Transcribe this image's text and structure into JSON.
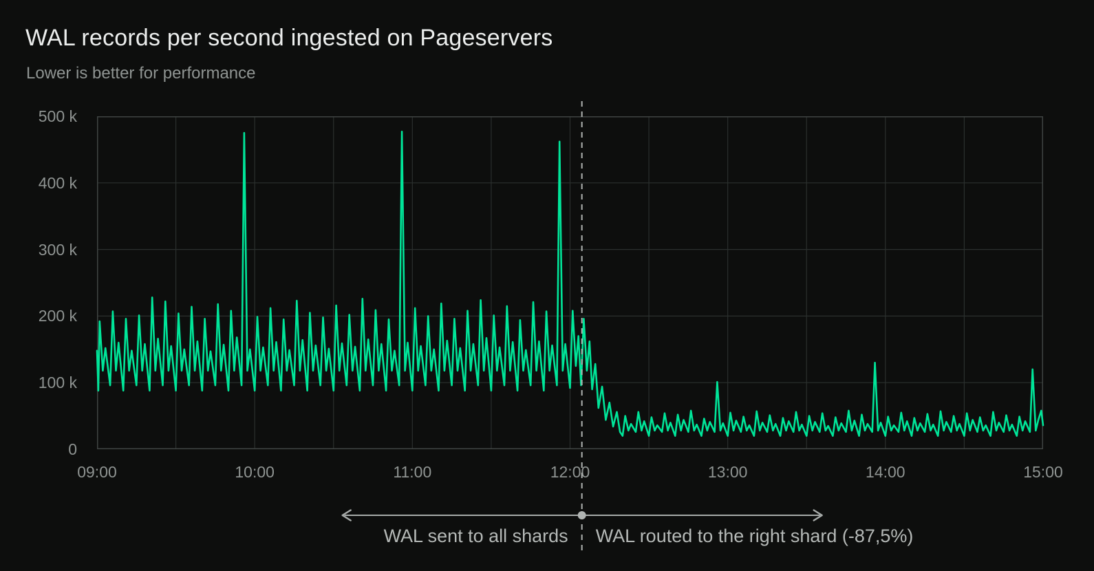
{
  "header": {
    "title": "WAL records per second ingested on Pageservers",
    "subtitle": "Lower is better for performance"
  },
  "annotation": {
    "left_label": "WAL sent to all shards",
    "right_label": "WAL routed to the right shard (-87,5%)"
  },
  "colors": {
    "background": "#0d0e0d",
    "title_text": "#eceeed",
    "subtitle_text": "#8f9492",
    "axis_text": "#8f9492",
    "grid_inner": "#2b302e",
    "plot_border": "#3f4442",
    "series_line": "#00e599",
    "split_line": "#b0b4b2",
    "arrow": "#a8acaa",
    "annotation_text": "#b5b9b7"
  },
  "chart_data": {
    "type": "line",
    "title": "WAL records per second ingested on Pageservers",
    "subtitle": "Lower is better for performance",
    "grid": "on",
    "x_axis": {
      "range_minutes": [
        0,
        360
      ],
      "gridline_every_minutes": 30,
      "ticks": [
        {
          "m": 0,
          "label": "09:00"
        },
        {
          "m": 60,
          "label": "10:00"
        },
        {
          "m": 120,
          "label": "11:00"
        },
        {
          "m": 180,
          "label": "12:00"
        },
        {
          "m": 240,
          "label": "13:00"
        },
        {
          "m": 300,
          "label": "14:00"
        },
        {
          "m": 360,
          "label": "15:00"
        }
      ]
    },
    "y_axis": {
      "max_k": 500,
      "ticks": [
        {
          "v": 500,
          "label": "500 k"
        },
        {
          "v": 400,
          "label": "400 k"
        },
        {
          "v": 300,
          "label": "300 k"
        },
        {
          "v": 200,
          "label": "200 k"
        },
        {
          "v": 100,
          "label": "100 k"
        },
        {
          "v": 0,
          "label": "0"
        }
      ]
    },
    "split_minute": 184.5,
    "hourly_spikes": [
      {
        "time": "09:56",
        "value_k": 475
      },
      {
        "time": "10:56",
        "value_k": 477
      },
      {
        "time": "11:56",
        "value_k": 462
      },
      {
        "time": "12:56",
        "value_k": 101
      },
      {
        "time": "13:56",
        "value_k": 130
      },
      {
        "time": "14:56",
        "value_k": 120
      }
    ],
    "series": {
      "name": "WAL records per second",
      "color": "#00e599",
      "lead_in_points": [
        [
          0,
          148
        ]
      ],
      "pre_regime": {
        "label": "WAL sent to all shards",
        "start_min": 0,
        "cycle_minutes": 5,
        "offsets": [
          1.0,
          2.2,
          3.2
        ],
        "minima_alternate": [
          88,
          96
        ],
        "mid_dip": 118,
        "peaks": [
          192,
          207,
          196,
          201,
          228,
          222,
          204,
          214,
          196,
          218,
          208,
          475,
          199,
          212,
          195,
          223,
          205,
          198,
          216,
          202,
          226,
          209,
          195,
          477,
          212,
          200,
          219,
          196,
          208,
          224,
          201,
          215,
          194,
          221,
          207,
          462
        ],
        "shoulders": [
          152,
          160,
          148,
          158,
          166,
          155,
          150,
          162,
          147,
          157,
          168,
          150,
          153,
          161,
          149,
          164,
          156,
          151,
          159,
          154,
          165,
          158,
          148,
          160,
          155,
          150,
          163,
          152,
          158,
          167,
          153,
          161,
          149,
          162,
          156,
          158
        ]
      },
      "transition_points": [
        [
          180,
          92
        ],
        [
          181,
          208
        ],
        [
          182.2,
          125
        ],
        [
          183.2,
          170
        ],
        [
          184.2,
          96
        ],
        [
          185.2,
          196
        ],
        [
          186.4,
          118
        ],
        [
          187.4,
          162
        ],
        [
          188.4,
          90
        ],
        [
          189.6,
          128
        ],
        [
          190.8,
          62
        ],
        [
          192.2,
          94
        ],
        [
          193.6,
          44
        ],
        [
          195,
          70
        ],
        [
          196.4,
          34
        ],
        [
          197.8,
          56
        ],
        [
          199,
          26
        ]
      ],
      "post_regime": {
        "label": "WAL routed to the right shard (-87,5%)",
        "start_min": 200,
        "cycle_minutes": 5,
        "offsets": [
          1.0,
          2.2,
          3.2
        ],
        "minima_alternate": [
          20,
          26
        ],
        "mid_dip": 28,
        "peaks": [
          50,
          56,
          48,
          54,
          52,
          58,
          46,
          101,
          55,
          49,
          57,
          51,
          47,
          56,
          50,
          54,
          48,
          58,
          52,
          130,
          49,
          55,
          47,
          53,
          57,
          50,
          54,
          48,
          56,
          51,
          49,
          120
        ],
        "shoulders": [
          38,
          42,
          36,
          40,
          44,
          37,
          41,
          39,
          43,
          36,
          40,
          38,
          42,
          37,
          41,
          35,
          39,
          43,
          38,
          40,
          36,
          42,
          39,
          37,
          41,
          38,
          44,
          36,
          40,
          37,
          42,
          44
        ]
      },
      "tail_points": [
        [
          359.3,
          58
        ],
        [
          360,
          36
        ]
      ]
    }
  }
}
